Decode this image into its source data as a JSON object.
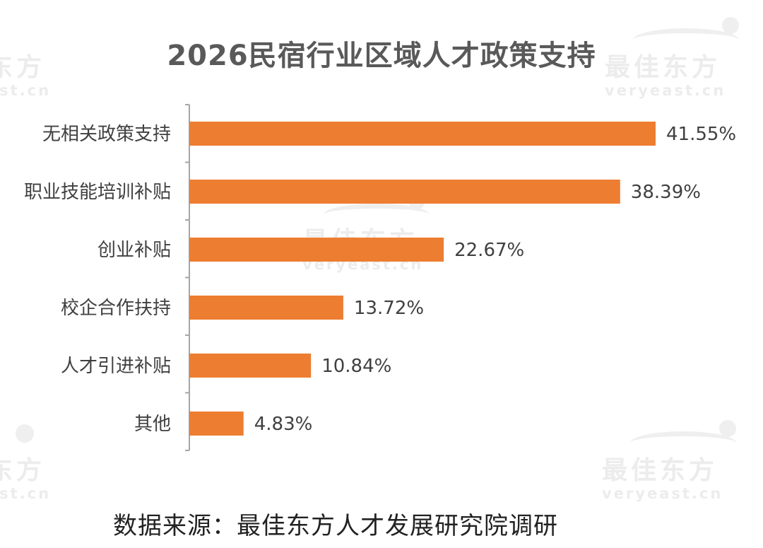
{
  "title": "2026民宿行业区域人才政策支持",
  "source": "数据来源：最佳东方人才发展研究院调研",
  "watermark": {
    "cn": "最佳东方",
    "en": "veryeast.cn",
    "cn_left": "东方",
    "en_left": "ast.cn"
  },
  "colors": {
    "bar": "#ED7D31",
    "axis": "#A6A6A6",
    "label": "#404040",
    "title": "#595959"
  },
  "chart_data": {
    "type": "bar",
    "orientation": "horizontal",
    "title": "2026民宿行业区域人才政策支持",
    "categories": [
      "无相关政策支持",
      "职业技能培训补贴",
      "创业补贴",
      "校企合作扶持",
      "人才引进补贴",
      "其他"
    ],
    "values": [
      41.55,
      38.39,
      22.67,
      13.72,
      10.84,
      4.83
    ],
    "value_labels": [
      "41.55%",
      "38.39%",
      "22.67%",
      "13.72%",
      "10.84%",
      "4.83%"
    ],
    "xlim": [
      0,
      42
    ],
    "grid": false,
    "legend": "none"
  }
}
